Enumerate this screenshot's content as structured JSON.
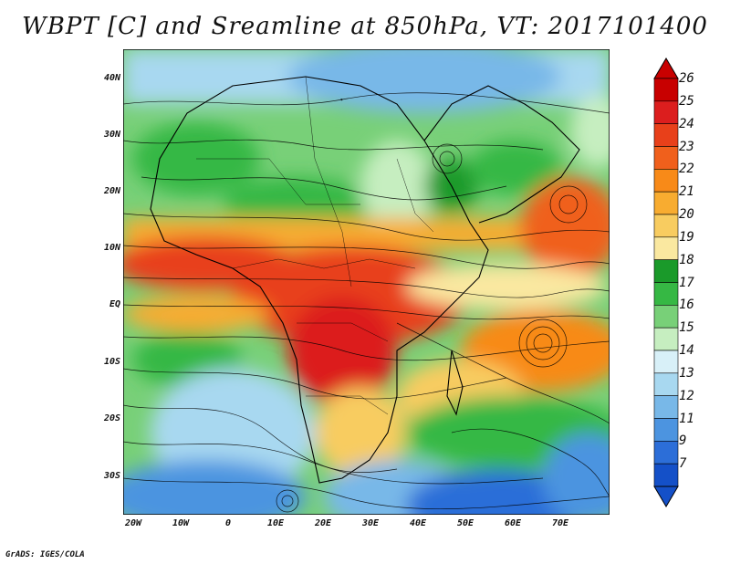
{
  "title": "WBPT [C] and Sreamline at 850hPa, VT: 2017101400",
  "credit": "GrADS: IGES/COLA",
  "map": {
    "lat_ticks": [
      "40N",
      "30N",
      "20N",
      "10N",
      "EQ",
      "10S",
      "20S",
      "30S"
    ],
    "lon_ticks": [
      "20W",
      "10W",
      "0",
      "10E",
      "20E",
      "30E",
      "40E",
      "50E",
      "60E",
      "70E"
    ],
    "lat_range": [
      -36,
      45
    ],
    "lon_range": [
      -22,
      80
    ],
    "variable": "Wet-bulb potential temperature (WBPT)",
    "units": "C",
    "level": "850hPa",
    "overlay": "streamlines"
  },
  "colorbar": {
    "labels": [
      "26",
      "25",
      "24",
      "23",
      "22",
      "21",
      "20",
      "19",
      "18",
      "17",
      "16",
      "15",
      "14",
      "13",
      "12",
      "11",
      "9",
      "7"
    ],
    "colors": [
      "#c80000",
      "#dc1e1e",
      "#e8401a",
      "#f0601c",
      "#f88a18",
      "#f8ac30",
      "#f8cc60",
      "#fae8a0",
      "#1a9a2a",
      "#36b844",
      "#78d078",
      "#c6eec0",
      "#d8f0f8",
      "#a8d8f0",
      "#78b8e8",
      "#4c94e0",
      "#2c6ed8",
      "#1450c8"
    ]
  }
}
